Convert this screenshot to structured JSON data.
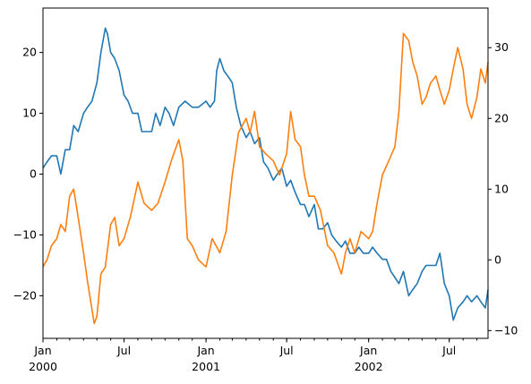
{
  "chart_data": {
    "type": "line",
    "title": "",
    "xlabel": "",
    "ylabel": "",
    "y2label": "",
    "grid": false,
    "legend": "none",
    "x_range": [
      "2000-01-01",
      "2002-09-26"
    ],
    "x_major_ticks": [
      {
        "date": "2000-01-01",
        "label": "Jan",
        "sublabel": "2000"
      },
      {
        "date": "2000-07-01",
        "label": "Jul",
        "sublabel": ""
      },
      {
        "date": "2001-01-01",
        "label": "Jan",
        "sublabel": "2001"
      },
      {
        "date": "2001-07-01",
        "label": "Jul",
        "sublabel": ""
      },
      {
        "date": "2002-01-01",
        "label": "Jan",
        "sublabel": "2002"
      },
      {
        "date": "2002-07-01",
        "label": "Jul",
        "sublabel": ""
      }
    ],
    "y_left": {
      "range": [
        -27.0,
        27.3
      ],
      "ticks": [
        -20,
        -10,
        0,
        10,
        20
      ]
    },
    "y_right": {
      "range": [
        -11.1,
        35.6
      ],
      "ticks": [
        -10,
        0,
        10,
        20,
        30
      ]
    },
    "series": [
      {
        "axis": "left",
        "color": "#1f77b4",
        "points": [
          [
            "2000-01-01",
            1
          ],
          [
            "2000-01-10",
            2
          ],
          [
            "2000-01-20",
            3
          ],
          [
            "2000-02-01",
            3
          ],
          [
            "2000-02-10",
            0
          ],
          [
            "2000-02-20",
            4
          ],
          [
            "2000-03-01",
            4
          ],
          [
            "2000-03-10",
            8
          ],
          [
            "2000-03-20",
            7
          ],
          [
            "2000-04-01",
            10
          ],
          [
            "2000-04-10",
            11
          ],
          [
            "2000-04-20",
            12
          ],
          [
            "2000-05-01",
            15
          ],
          [
            "2000-05-10",
            20
          ],
          [
            "2000-05-20",
            24
          ],
          [
            "2000-05-25",
            23
          ],
          [
            "2000-06-01",
            20
          ],
          [
            "2000-06-10",
            19
          ],
          [
            "2000-06-20",
            17
          ],
          [
            "2000-07-01",
            13
          ],
          [
            "2000-07-10",
            12
          ],
          [
            "2000-07-20",
            10
          ],
          [
            "2000-08-01",
            10
          ],
          [
            "2000-08-10",
            7
          ],
          [
            "2000-08-20",
            7
          ],
          [
            "2000-09-01",
            7
          ],
          [
            "2000-09-10",
            10
          ],
          [
            "2000-09-20",
            8
          ],
          [
            "2000-10-01",
            11
          ],
          [
            "2000-10-10",
            10
          ],
          [
            "2000-10-20",
            8
          ],
          [
            "2000-11-01",
            11
          ],
          [
            "2000-11-15",
            12
          ],
          [
            "2000-12-01",
            11
          ],
          [
            "2000-12-15",
            11
          ],
          [
            "2001-01-01",
            12
          ],
          [
            "2001-01-10",
            11
          ],
          [
            "2001-01-20",
            12
          ],
          [
            "2001-01-25",
            17
          ],
          [
            "2001-02-01",
            19
          ],
          [
            "2001-02-10",
            17
          ],
          [
            "2001-02-20",
            16
          ],
          [
            "2001-03-01",
            15
          ],
          [
            "2001-03-10",
            11
          ],
          [
            "2001-03-20",
            8
          ],
          [
            "2001-04-01",
            6
          ],
          [
            "2001-04-10",
            7
          ],
          [
            "2001-04-20",
            5
          ],
          [
            "2001-05-01",
            6
          ],
          [
            "2001-05-10",
            2
          ],
          [
            "2001-05-20",
            1
          ],
          [
            "2001-06-01",
            -1
          ],
          [
            "2001-06-10",
            0
          ],
          [
            "2001-06-20",
            1
          ],
          [
            "2001-07-01",
            -2
          ],
          [
            "2001-07-10",
            -1
          ],
          [
            "2001-07-20",
            -3
          ],
          [
            "2001-08-01",
            -5
          ],
          [
            "2001-08-10",
            -5
          ],
          [
            "2001-08-20",
            -7
          ],
          [
            "2001-09-01",
            -5
          ],
          [
            "2001-09-10",
            -9
          ],
          [
            "2001-09-20",
            -9
          ],
          [
            "2001-10-01",
            -8
          ],
          [
            "2001-10-10",
            -10
          ],
          [
            "2001-10-20",
            -11
          ],
          [
            "2001-11-01",
            -12
          ],
          [
            "2001-11-10",
            -11
          ],
          [
            "2001-11-20",
            -13
          ],
          [
            "2001-12-01",
            -13
          ],
          [
            "2001-12-10",
            -12
          ],
          [
            "2001-12-20",
            -13
          ],
          [
            "2002-01-01",
            -13
          ],
          [
            "2002-01-10",
            -12
          ],
          [
            "2002-01-20",
            -13
          ],
          [
            "2002-02-01",
            -14
          ],
          [
            "2002-02-10",
            -14
          ],
          [
            "2002-02-20",
            -16
          ],
          [
            "2002-03-01",
            -17
          ],
          [
            "2002-03-10",
            -18
          ],
          [
            "2002-03-20",
            -16
          ],
          [
            "2002-04-01",
            -20
          ],
          [
            "2002-04-10",
            -19
          ],
          [
            "2002-04-20",
            -18
          ],
          [
            "2002-05-01",
            -16
          ],
          [
            "2002-05-10",
            -15
          ],
          [
            "2002-05-20",
            -15
          ],
          [
            "2002-06-01",
            -15
          ],
          [
            "2002-06-10",
            -13
          ],
          [
            "2002-06-20",
            -18
          ],
          [
            "2002-07-01",
            -20
          ],
          [
            "2002-07-10",
            -24
          ],
          [
            "2002-07-20",
            -22
          ],
          [
            "2002-08-01",
            -21
          ],
          [
            "2002-08-10",
            -20
          ],
          [
            "2002-08-20",
            -21
          ],
          [
            "2002-09-01",
            -20
          ],
          [
            "2002-09-10",
            -21
          ],
          [
            "2002-09-20",
            -22
          ],
          [
            "2002-09-26",
            -19
          ]
        ]
      },
      {
        "axis": "right",
        "color": "#ff7f0e",
        "points": [
          [
            "2000-01-01",
            -1
          ],
          [
            "2000-01-10",
            0
          ],
          [
            "2000-01-20",
            2
          ],
          [
            "2000-02-01",
            3
          ],
          [
            "2000-02-10",
            5
          ],
          [
            "2000-02-20",
            4
          ],
          [
            "2000-03-01",
            9
          ],
          [
            "2000-03-10",
            10
          ],
          [
            "2000-03-20",
            6
          ],
          [
            "2000-04-01",
            1
          ],
          [
            "2000-04-10",
            -3
          ],
          [
            "2000-04-20",
            -7
          ],
          [
            "2000-04-25",
            -9
          ],
          [
            "2000-05-01",
            -8
          ],
          [
            "2000-05-10",
            -2
          ],
          [
            "2000-05-20",
            -1
          ],
          [
            "2000-06-01",
            5
          ],
          [
            "2000-06-10",
            6
          ],
          [
            "2000-06-20",
            2
          ],
          [
            "2000-07-01",
            3
          ],
          [
            "2000-07-15",
            6
          ],
          [
            "2000-08-01",
            11
          ],
          [
            "2000-08-15",
            8
          ],
          [
            "2000-09-01",
            7
          ],
          [
            "2000-09-15",
            8
          ],
          [
            "2000-10-01",
            11
          ],
          [
            "2000-10-15",
            14
          ],
          [
            "2000-11-01",
            17
          ],
          [
            "2000-11-10",
            14
          ],
          [
            "2000-11-20",
            3
          ],
          [
            "2000-12-01",
            2
          ],
          [
            "2000-12-15",
            0
          ],
          [
            "2001-01-01",
            -1
          ],
          [
            "2001-01-15",
            3
          ],
          [
            "2001-02-01",
            1
          ],
          [
            "2001-02-15",
            4
          ],
          [
            "2001-03-01",
            12
          ],
          [
            "2001-03-15",
            18
          ],
          [
            "2001-04-01",
            20
          ],
          [
            "2001-04-10",
            18
          ],
          [
            "2001-04-20",
            21
          ],
          [
            "2001-05-01",
            16
          ],
          [
            "2001-05-15",
            15
          ],
          [
            "2001-06-01",
            14
          ],
          [
            "2001-06-15",
            12
          ],
          [
            "2001-07-01",
            15
          ],
          [
            "2001-07-10",
            21
          ],
          [
            "2001-07-20",
            17
          ],
          [
            "2001-08-01",
            16
          ],
          [
            "2001-08-10",
            12
          ],
          [
            "2001-08-20",
            9
          ],
          [
            "2001-09-01",
            9
          ],
          [
            "2001-09-15",
            7
          ],
          [
            "2001-10-01",
            2
          ],
          [
            "2001-10-15",
            1
          ],
          [
            "2001-11-01",
            -2
          ],
          [
            "2001-11-10",
            1
          ],
          [
            "2001-11-20",
            3
          ],
          [
            "2001-12-01",
            1
          ],
          [
            "2001-12-15",
            4
          ],
          [
            "2002-01-01",
            3
          ],
          [
            "2002-01-10",
            4
          ],
          [
            "2002-01-20",
            8
          ],
          [
            "2002-02-01",
            12
          ],
          [
            "2002-02-15",
            14
          ],
          [
            "2002-03-01",
            16
          ],
          [
            "2002-03-10",
            21
          ],
          [
            "2002-03-20",
            32
          ],
          [
            "2002-04-01",
            31
          ],
          [
            "2002-04-10",
            28
          ],
          [
            "2002-04-20",
            26
          ],
          [
            "2002-05-01",
            22
          ],
          [
            "2002-05-10",
            23
          ],
          [
            "2002-05-20",
            25
          ],
          [
            "2002-06-01",
            26
          ],
          [
            "2002-06-10",
            24
          ],
          [
            "2002-06-20",
            22
          ],
          [
            "2002-07-01",
            24
          ],
          [
            "2002-07-10",
            27
          ],
          [
            "2002-07-20",
            30
          ],
          [
            "2002-08-01",
            27
          ],
          [
            "2002-08-10",
            22
          ],
          [
            "2002-08-20",
            20
          ],
          [
            "2002-09-01",
            23
          ],
          [
            "2002-09-10",
            27
          ],
          [
            "2002-09-20",
            25
          ],
          [
            "2002-09-26",
            28
          ]
        ]
      }
    ]
  }
}
